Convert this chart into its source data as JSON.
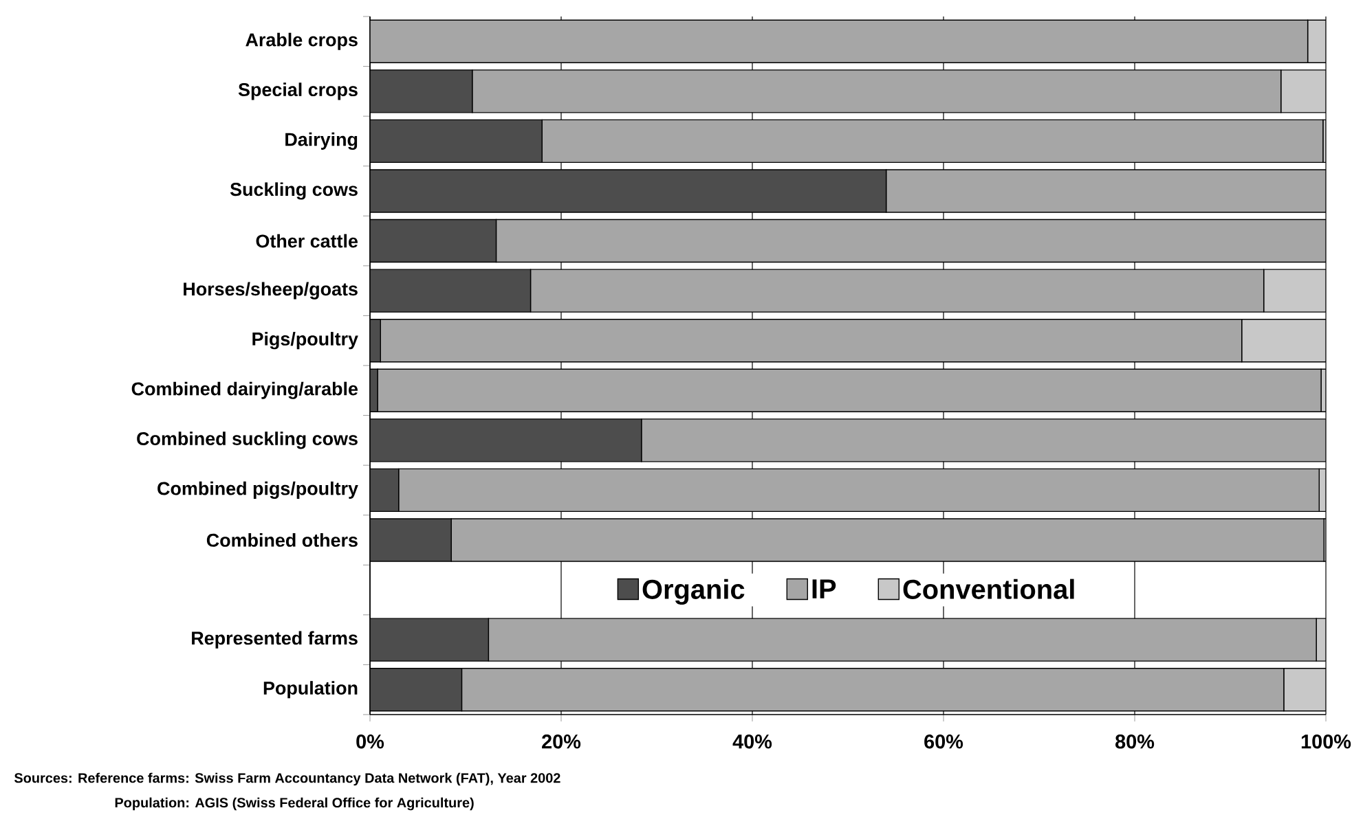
{
  "chart_data": {
    "type": "bar",
    "orientation": "horizontal",
    "stacked": true,
    "categories": [
      "Arable crops",
      "Special crops",
      "Dairying",
      "Suckling cows",
      "Other cattle",
      "Horses/sheep/goats",
      "Pigs/poultry",
      "Combined dairying/arable",
      "Combined suckling cows",
      "Combined pigs/poultry",
      "Combined others",
      null,
      "Represented farms",
      "Population"
    ],
    "series": [
      {
        "name": "Organic",
        "color": "#4d4d4d",
        "values": [
          0,
          10.7,
          18.0,
          54.0,
          13.2,
          16.8,
          1.1,
          0.8,
          28.4,
          3.0,
          8.5,
          null,
          12.4,
          9.6
        ]
      },
      {
        "name": "IP",
        "color": "#a6a6a6",
        "values": [
          98.1,
          84.6,
          81.7,
          46.0,
          86.8,
          76.7,
          90.1,
          98.7,
          71.6,
          96.3,
          91.3,
          null,
          86.6,
          86.0
        ]
      },
      {
        "name": "Conventional",
        "color": "#c8c8c8",
        "values": [
          1.9,
          4.7,
          0.3,
          0,
          0,
          6.5,
          8.8,
          0.5,
          0,
          0.7,
          0.2,
          null,
          1.0,
          4.4
        ]
      }
    ],
    "xlim": [
      0,
      100
    ],
    "xticks": [
      {
        "value": 0,
        "label": "0%"
      },
      {
        "value": 20,
        "label": "20%"
      },
      {
        "value": 40,
        "label": "40%"
      },
      {
        "value": 60,
        "label": "60%"
      },
      {
        "value": 80,
        "label": "80%"
      },
      {
        "value": 100,
        "label": "100%"
      }
    ],
    "grid": "x",
    "legend": "center",
    "annotations": [
      "Sources: Reference farms: Swiss Farm Accountancy Data Network (FAT), Year 2002",
      "Population: AGIS (Swiss Federal Office for Agriculture)"
    ]
  }
}
